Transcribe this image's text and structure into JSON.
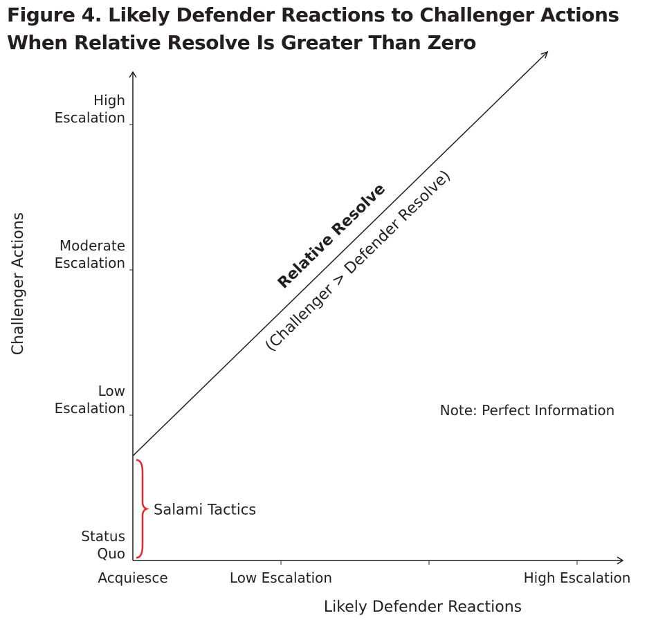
{
  "title_lines": [
    "Figure 4. Likely Defender Reactions to Challenger Actions",
    "When Relative Resolve Is Greater Than Zero"
  ],
  "chart_data": {
    "type": "line",
    "xlabel": "Likely Defender Reactions",
    "ylabel": "Challenger Actions",
    "x_ticks": [
      {
        "value": 0,
        "label": "Acquiesce"
      },
      {
        "value": 1,
        "label": "Low Escalation"
      },
      {
        "value": 2,
        "label": ""
      },
      {
        "value": 3,
        "label": "High Escalation"
      }
    ],
    "y_ticks": [
      {
        "value": 0,
        "lines": [
          "Status",
          "Quo"
        ]
      },
      {
        "value": 1,
        "lines": [
          "Low",
          "Escalation"
        ]
      },
      {
        "value": 2,
        "lines": [
          "Moderate",
          "Escalation"
        ]
      },
      {
        "value": 3,
        "lines": [
          "High",
          "Escalation"
        ]
      }
    ],
    "xlim": [
      0,
      3.5
    ],
    "ylim": [
      0,
      3.6
    ],
    "series": [
      {
        "x": [
          0,
          2.8
        ],
        "y": [
          0.72,
          3.5
        ],
        "color": "#231f20"
      }
    ],
    "line_label": "Relative Resolve",
    "line_sublabel": "(Challenger > Defender Resolve)",
    "brace": {
      "y_from": 0,
      "y_to": 0.72,
      "label": "Salami Tactics",
      "color": "#e8262c"
    },
    "note": "Note: Perfect Information"
  }
}
